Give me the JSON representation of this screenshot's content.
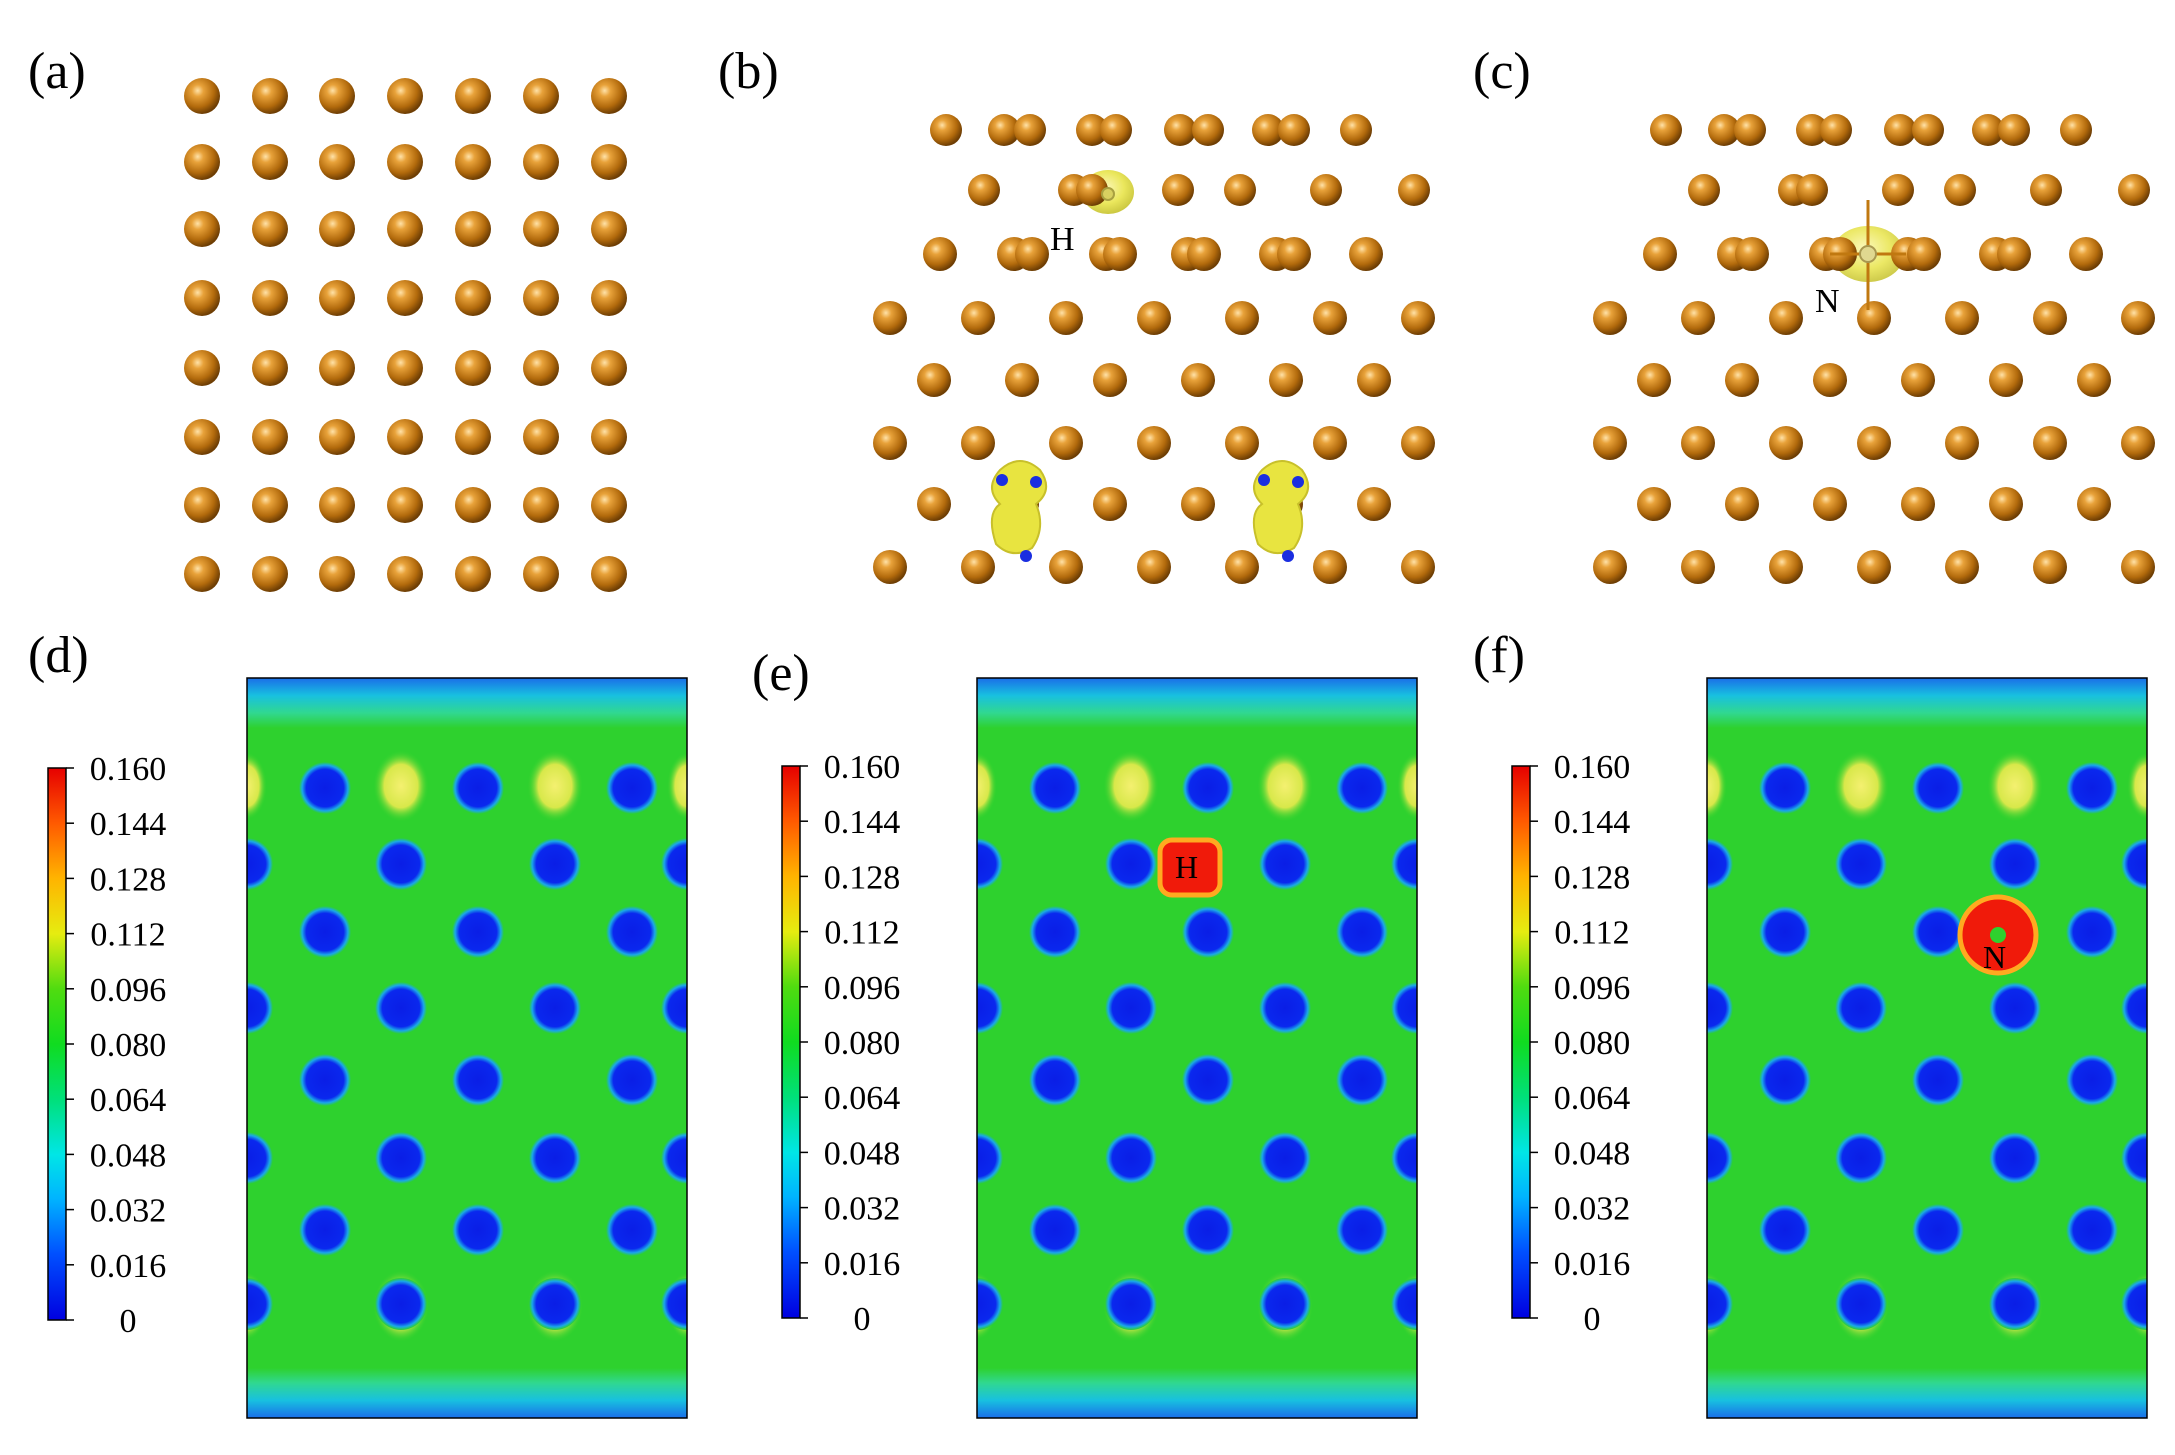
{
  "panels": [
    {
      "id": "a",
      "label": "(a)"
    },
    {
      "id": "b",
      "label": "(b)",
      "atom_label": "H"
    },
    {
      "id": "c",
      "label": "(c)",
      "atom_label": "N"
    },
    {
      "id": "d",
      "label": "(d)"
    },
    {
      "id": "e",
      "label": "(e)",
      "atom_label": "H"
    },
    {
      "id": "f",
      "label": "(f)",
      "atom_label": "N"
    }
  ],
  "colorbar": {
    "ticks": [
      "0.160",
      "0.144",
      "0.128",
      "0.112",
      "0.096",
      "0.080",
      "0.064",
      "0.048",
      "0.032",
      "0.016",
      "0"
    ]
  },
  "colors": {
    "atom": "#c07810",
    "isosurface": "#ecec40",
    "map_background": "#2ed12e",
    "map_low": "#0a22e6",
    "map_high": "#f01a0a"
  }
}
